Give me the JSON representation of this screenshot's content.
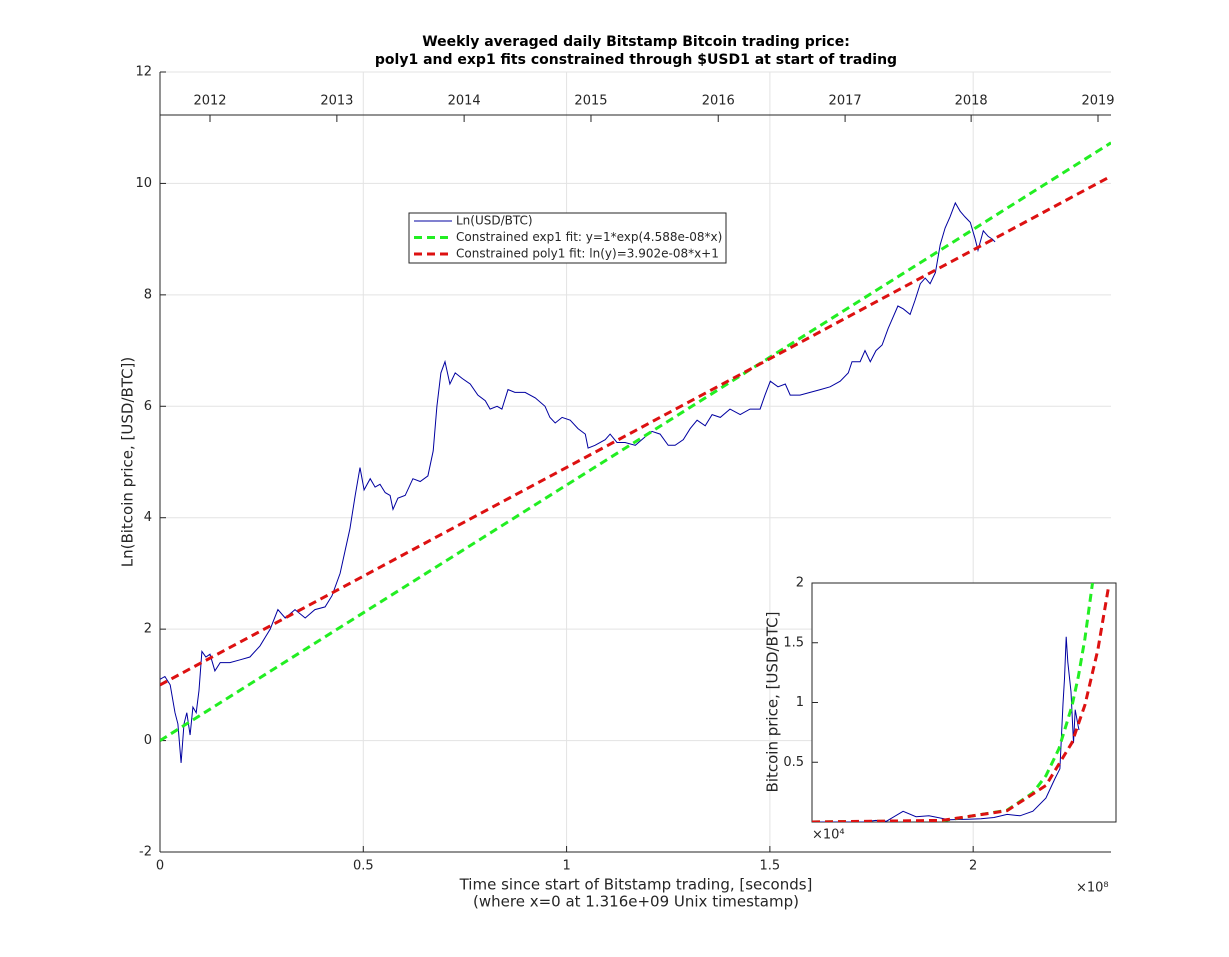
{
  "chart_data": [
    {
      "type": "line",
      "title": [
        "Weekly averaged daily Bitstamp Bitcoin trading price:",
        "poly1 and exp1 fits constrained through $USD1 at start of trading"
      ],
      "xlabel": [
        "Time since start of Bitstamp trading, [seconds]",
        "(where x=0 at 1.316e+09 Unix timestamp)"
      ],
      "ylabel": "Ln(Bitcoin price, [USD/BTC])",
      "x_multiplier": "×10⁸",
      "xlim": [
        0,
        2.339
      ],
      "ylim": [
        -2,
        12
      ],
      "xticks": [
        0,
        0.5,
        1,
        1.5,
        2
      ],
      "yticks": [
        -2,
        0,
        2,
        4,
        6,
        8,
        10,
        12
      ],
      "x2ticks": [
        {
          "value": 0.123,
          "label": "2012"
        },
        {
          "value": 0.435,
          "label": "2013"
        },
        {
          "value": 0.748,
          "label": "2014"
        },
        {
          "value": 1.06,
          "label": "2015"
        },
        {
          "value": 1.373,
          "label": "2016"
        },
        {
          "value": 1.685,
          "label": "2017"
        },
        {
          "value": 1.995,
          "label": "2018"
        },
        {
          "value": 2.307,
          "label": "2019"
        }
      ],
      "grid": true,
      "legend": "upper-center",
      "series": [
        {
          "name": "Ln(USD/BTC)",
          "color": "#0000a0",
          "style": "solid",
          "x": [
            0,
            0.012,
            0.025,
            0.037,
            0.044,
            0.052,
            0.059,
            0.066,
            0.074,
            0.081,
            0.089,
            0.096,
            0.103,
            0.113,
            0.123,
            0.135,
            0.148,
            0.172,
            0.197,
            0.221,
            0.246,
            0.271,
            0.29,
            0.308,
            0.332,
            0.357,
            0.381,
            0.406,
            0.423,
            0.443,
            0.455,
            0.467,
            0.48,
            0.492,
            0.502,
            0.517,
            0.529,
            0.541,
            0.554,
            0.566,
            0.573,
            0.585,
            0.603,
            0.622,
            0.64,
            0.659,
            0.672,
            0.681,
            0.691,
            0.701,
            0.713,
            0.726,
            0.743,
            0.763,
            0.782,
            0.8,
            0.812,
            0.829,
            0.841,
            0.856,
            0.873,
            0.898,
            0.923,
            0.947,
            0.959,
            0.972,
            0.989,
            1.009,
            1.028,
            1.046,
            1.053,
            1.07,
            1.095,
            1.107,
            1.124,
            1.144,
            1.169,
            1.193,
            1.21,
            1.23,
            1.25,
            1.267,
            1.287,
            1.304,
            1.321,
            1.341,
            1.358,
            1.378,
            1.402,
            1.427,
            1.451,
            1.476,
            1.488,
            1.501,
            1.52,
            1.538,
            1.55,
            1.574,
            1.599,
            1.624,
            1.648,
            1.673,
            1.693,
            1.702,
            1.722,
            1.734,
            1.747,
            1.761,
            1.776,
            1.791,
            1.803,
            1.815,
            1.828,
            1.845,
            1.857,
            1.87,
            1.882,
            1.894,
            1.907,
            1.919,
            1.931,
            1.943,
            1.956,
            1.968,
            1.98,
            1.993,
            2.005,
            2.012,
            2.025,
            2.037,
            2.047,
            2.054
          ],
          "values": [
            1.1,
            1.15,
            1.0,
            0.5,
            0.3,
            -0.4,
            0.3,
            0.5,
            0.1,
            0.6,
            0.5,
            0.9,
            1.6,
            1.5,
            1.55,
            1.25,
            1.4,
            1.4,
            1.45,
            1.5,
            1.7,
            2.0,
            2.35,
            2.2,
            2.35,
            2.2,
            2.35,
            2.4,
            2.6,
            3.0,
            3.4,
            3.8,
            4.4,
            4.9,
            4.5,
            4.7,
            4.55,
            4.6,
            4.45,
            4.4,
            4.15,
            4.35,
            4.4,
            4.7,
            4.65,
            4.75,
            5.2,
            6.0,
            6.6,
            6.8,
            6.4,
            6.6,
            6.5,
            6.4,
            6.2,
            6.1,
            5.95,
            6.0,
            5.95,
            6.3,
            6.25,
            6.25,
            6.15,
            6.0,
            5.8,
            5.7,
            5.8,
            5.75,
            5.6,
            5.5,
            5.25,
            5.3,
            5.4,
            5.5,
            5.35,
            5.35,
            5.3,
            5.45,
            5.55,
            5.5,
            5.3,
            5.3,
            5.4,
            5.6,
            5.75,
            5.65,
            5.85,
            5.8,
            5.95,
            5.85,
            5.95,
            5.95,
            6.2,
            6.45,
            6.35,
            6.4,
            6.2,
            6.2,
            6.25,
            6.3,
            6.35,
            6.45,
            6.6,
            6.8,
            6.8,
            7.0,
            6.8,
            7.0,
            7.1,
            7.4,
            7.6,
            7.8,
            7.75,
            7.65,
            7.9,
            8.2,
            8.3,
            8.2,
            8.4,
            8.9,
            9.2,
            9.4,
            9.65,
            9.5,
            9.4,
            9.3,
            9.0,
            8.8,
            9.15,
            9.05,
            9.0,
            8.95
          ]
        },
        {
          "name": "Constrained exp1 fit: y=1*exp(4.588e-08*x)",
          "color": "#22ee22",
          "style": "dashed",
          "x": [
            0,
            2.339
          ],
          "values": [
            0,
            10.73
          ]
        },
        {
          "name": "Constrained poly1 fit: ln(y)=3.902e-08*x+1",
          "color": "#dd1111",
          "style": "dashed",
          "x": [
            0,
            2.339
          ],
          "values": [
            1,
            10.13
          ]
        }
      ]
    },
    {
      "type": "line",
      "ylabel": "Bitcoin price, [USD/BTC]",
      "y_multiplier": "×10⁴",
      "xlim": [
        0,
        2.339
      ],
      "ylim": [
        0,
        2
      ],
      "yticks": [
        0.5,
        1,
        1.5,
        2
      ],
      "grid": false,
      "series": [
        {
          "color": "#0000a0",
          "style": "solid",
          "x": [
            0,
            0.2,
            0.4,
            0.492,
            0.573,
            0.701,
            0.8,
            0.9,
            1.053,
            1.2,
            1.3,
            1.4,
            1.501,
            1.6,
            1.7,
            1.8,
            1.87,
            1.907,
            1.931,
            1.943,
            1.956,
            1.968,
            1.993,
            2.012,
            2.025,
            2.047,
            2.054
          ],
          "values": [
            0.0003,
            0.0004,
            0.0011,
            0.0134,
            0.0064,
            0.0898,
            0.0446,
            0.052,
            0.0191,
            0.0234,
            0.027,
            0.038,
            0.0634,
            0.0518,
            0.09,
            0.2,
            0.3641,
            0.445,
            0.99,
            1.2,
            1.55,
            1.34,
            1.09,
            0.66,
            0.94,
            0.81,
            0.77
          ]
        },
        {
          "color": "#22ee22",
          "style": "dashed",
          "x": [
            0,
            1,
            1.5,
            1.7,
            1.8,
            1.9,
            2.0,
            2.05,
            2.1,
            2.158
          ],
          "values": [
            0.0001,
            0.0098,
            0.0975,
            0.2444,
            0.3868,
            0.6123,
            0.969,
            1.219,
            1.534,
            2.0
          ]
        },
        {
          "color": "#dd1111",
          "style": "dashed",
          "x": [
            0,
            1,
            1.5,
            1.8,
            2.0,
            2.1,
            2.2,
            2.282
          ],
          "values": [
            0.0003,
            0.0135,
            0.0949,
            0.3055,
            0.6626,
            0.9783,
            1.443,
            1.97
          ]
        }
      ]
    }
  ]
}
